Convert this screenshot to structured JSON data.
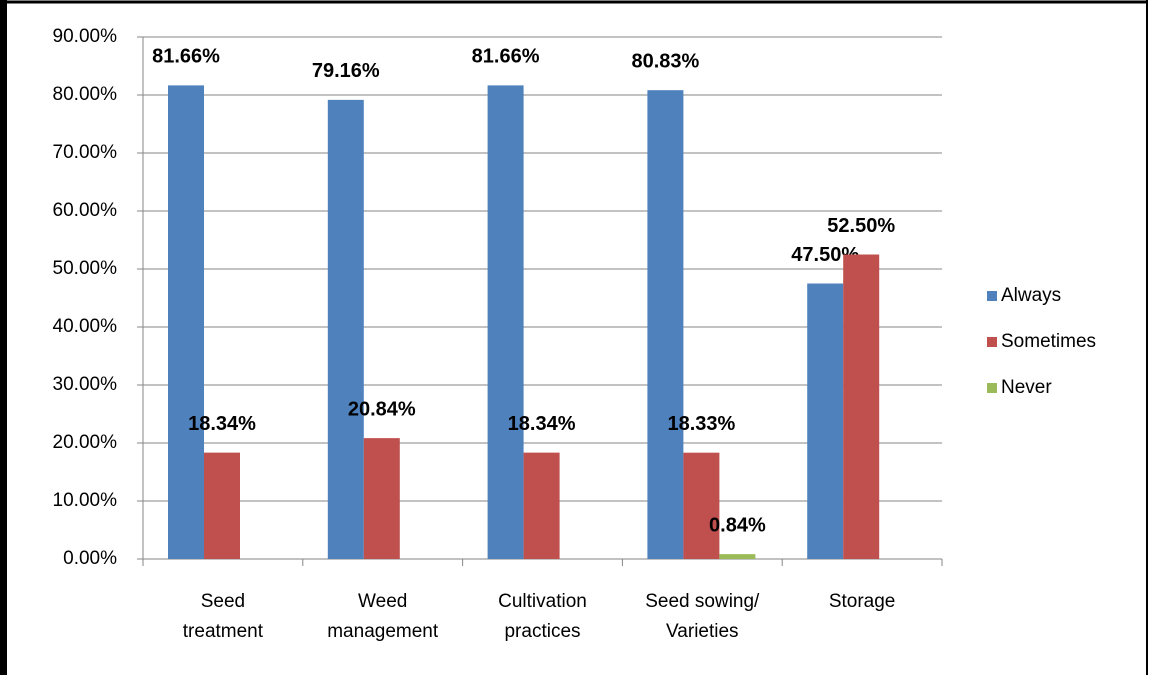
{
  "chart_data": {
    "type": "bar",
    "categories": [
      [
        "Seed",
        "treatment"
      ],
      [
        "Weed",
        "management"
      ],
      [
        "Cultivation",
        "practices"
      ],
      [
        "Seed sowing/",
        "Varieties"
      ],
      [
        "Storage"
      ]
    ],
    "series": [
      {
        "name": "Always",
        "color": "#4f81bd",
        "values": [
          81.66,
          79.16,
          81.66,
          80.83,
          47.5
        ],
        "value_labels": [
          "81.66%",
          "79.16%",
          "81.66%",
          "80.83%",
          "47.50%"
        ]
      },
      {
        "name": "Sometimes",
        "color": "#c0504d",
        "values": [
          18.34,
          20.84,
          18.34,
          18.33,
          52.5
        ],
        "value_labels": [
          "18.34%",
          "20.84%",
          "18.34%",
          "18.33%",
          "52.50%"
        ]
      },
      {
        "name": "Never",
        "color": "#9bbb59",
        "values": [
          null,
          null,
          null,
          0.84,
          null
        ],
        "value_labels": [
          null,
          null,
          null,
          "0.84%",
          null
        ]
      }
    ],
    "ylim": [
      0,
      90
    ],
    "yticks": [
      {
        "value": 0,
        "label": "0.00%"
      },
      {
        "value": 10,
        "label": "10.00%"
      },
      {
        "value": 20,
        "label": "20.00%"
      },
      {
        "value": 30,
        "label": "30.00%"
      },
      {
        "value": 40,
        "label": "40.00%"
      },
      {
        "value": 50,
        "label": "50.00%"
      },
      {
        "value": 60,
        "label": "60.00%"
      },
      {
        "value": 70,
        "label": "70.00%"
      },
      {
        "value": 80,
        "label": "80.00%"
      },
      {
        "value": 90,
        "label": "90.00%"
      }
    ],
    "grid": true,
    "legend": "right"
  }
}
